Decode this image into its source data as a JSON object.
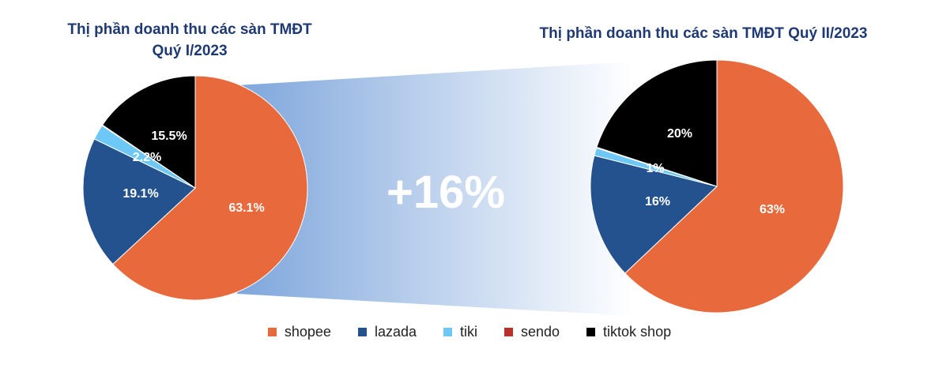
{
  "colors": {
    "shopee": "#e8693b",
    "lazada": "#23528f",
    "tiki": "#6ec8f5",
    "sendo": "#b8312a",
    "tiktok_shop": "#000000",
    "band_start": "#7ea6dc",
    "band_end": "#ffffff",
    "title": "#1f3a73"
  },
  "growth_label": "+16%",
  "chart_data": [
    {
      "type": "pie",
      "title": "Thị phần doanh thu các sàn TMĐT Quý I/2023",
      "title_lines": [
        "Thị phần doanh thu các sàn TMĐT",
        "Quý I/2023"
      ],
      "start_angle_deg": 0,
      "direction": "clockwise",
      "slices": [
        {
          "key": "shopee",
          "name": "shopee",
          "value": 63.1,
          "label": "63.1%"
        },
        {
          "key": "lazada",
          "name": "lazada",
          "value": 19.1,
          "label": "19.1%"
        },
        {
          "key": "tiki",
          "name": "tiki",
          "value": 2.2,
          "label": "2.2%"
        },
        {
          "key": "sendo",
          "name": "sendo",
          "value": 0.1,
          "label": ""
        },
        {
          "key": "tiktok_shop",
          "name": "tiktok shop",
          "value": 15.5,
          "label": "15.5%"
        }
      ]
    },
    {
      "type": "pie",
      "title": "Thị phần doanh thu các sàn TMĐT Quý II/2023",
      "title_lines": [
        "Thị phần doanh thu các sàn TMĐT Quý II/2023"
      ],
      "start_angle_deg": 0,
      "direction": "clockwise",
      "slices": [
        {
          "key": "shopee",
          "name": "shopee",
          "value": 63,
          "label": "63%"
        },
        {
          "key": "lazada",
          "name": "lazada",
          "value": 16,
          "label": "16%"
        },
        {
          "key": "tiki",
          "name": "tiki",
          "value": 1,
          "label": "1%"
        },
        {
          "key": "sendo",
          "name": "sendo",
          "value": 0.1,
          "label": ""
        },
        {
          "key": "tiktok_shop",
          "name": "tiktok shop",
          "value": 20,
          "label": "20%"
        }
      ]
    }
  ],
  "legend": [
    {
      "key": "shopee",
      "label": "shopee"
    },
    {
      "key": "lazada",
      "label": "lazada"
    },
    {
      "key": "tiki",
      "label": "tiki"
    },
    {
      "key": "sendo",
      "label": "sendo"
    },
    {
      "key": "tiktok_shop",
      "label": "tiktok shop"
    }
  ]
}
